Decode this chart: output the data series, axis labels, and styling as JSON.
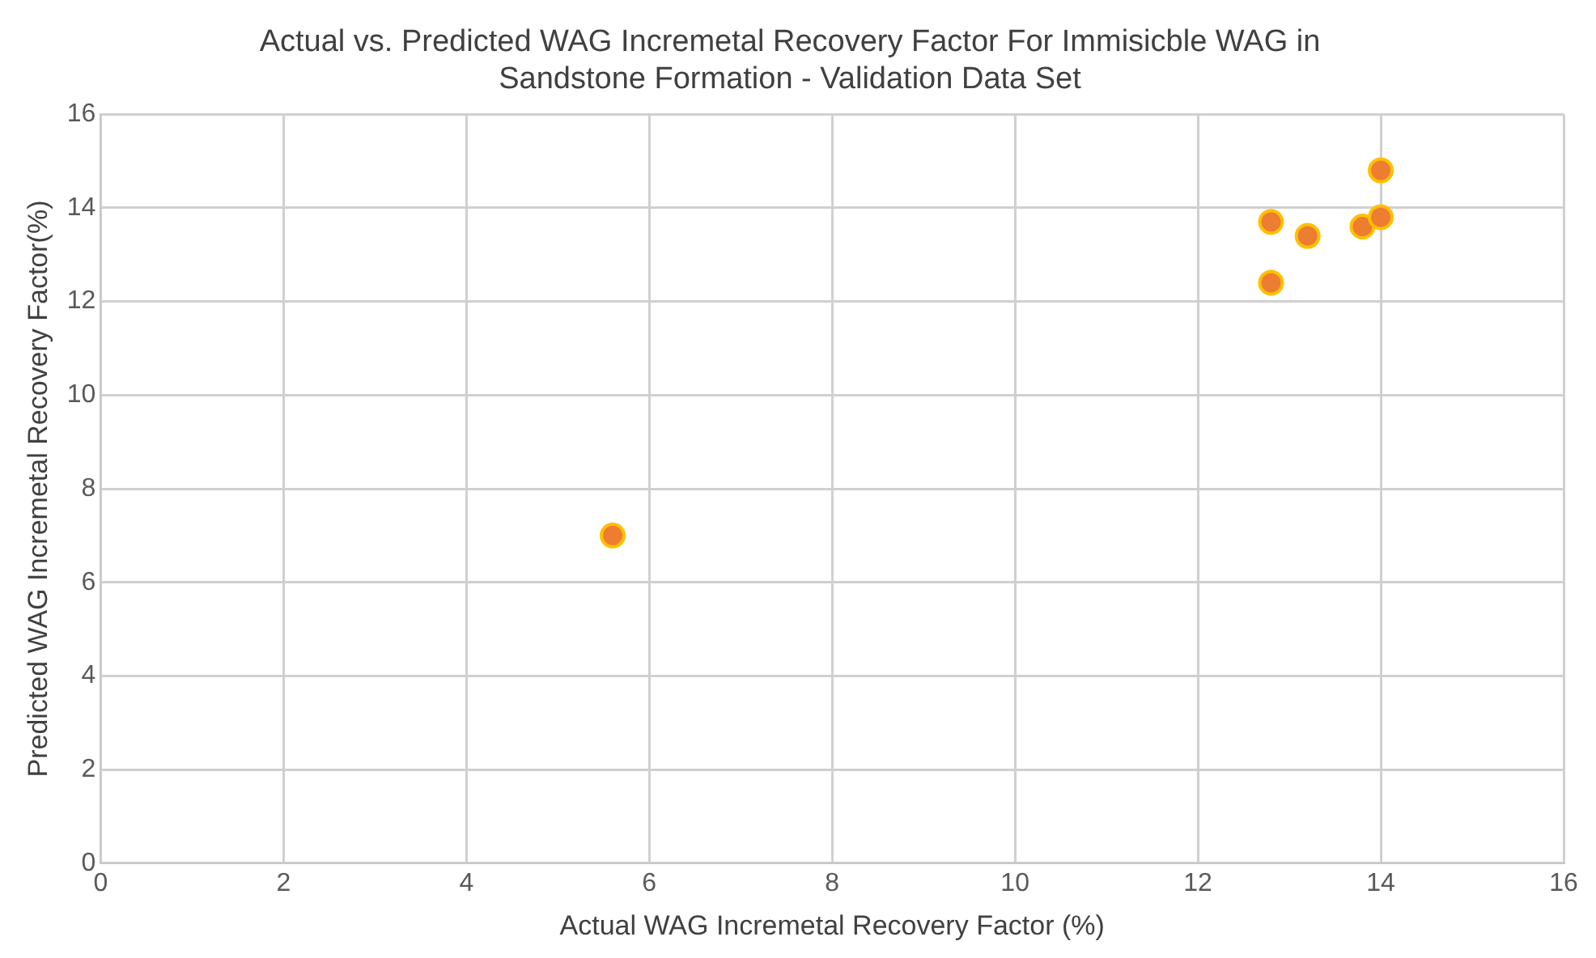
{
  "chart_data": {
    "type": "scatter",
    "title": "Actual vs. Predicted WAG Incremetal Recovery Factor For Immisicble WAG in Sandstone Formation - Validation Data Set",
    "xlabel": "Actual WAG Incremetal Recovery Factor (%)",
    "ylabel": "Predicted WAG Incremetal Recovery Factor(%)",
    "series": [
      {
        "color": "#ed7d31",
        "x": [
          12.8,
          12.8,
          13.2,
          13.8,
          14,
          14,
          5.6
        ],
        "values": [
          13.7,
          12.4,
          13.4,
          13.6,
          13.8,
          14.8,
          7.0
        ]
      }
    ],
    "xlim": [
      0,
      16
    ],
    "xticks": [
      0,
      2,
      4,
      6,
      8,
      10,
      12,
      14,
      16
    ],
    "ylim": [
      0,
      16
    ],
    "yticks": [
      0,
      2,
      4,
      6,
      8,
      10,
      12,
      14,
      16
    ],
    "grid": true,
    "legend": false,
    "marker": "circle"
  }
}
